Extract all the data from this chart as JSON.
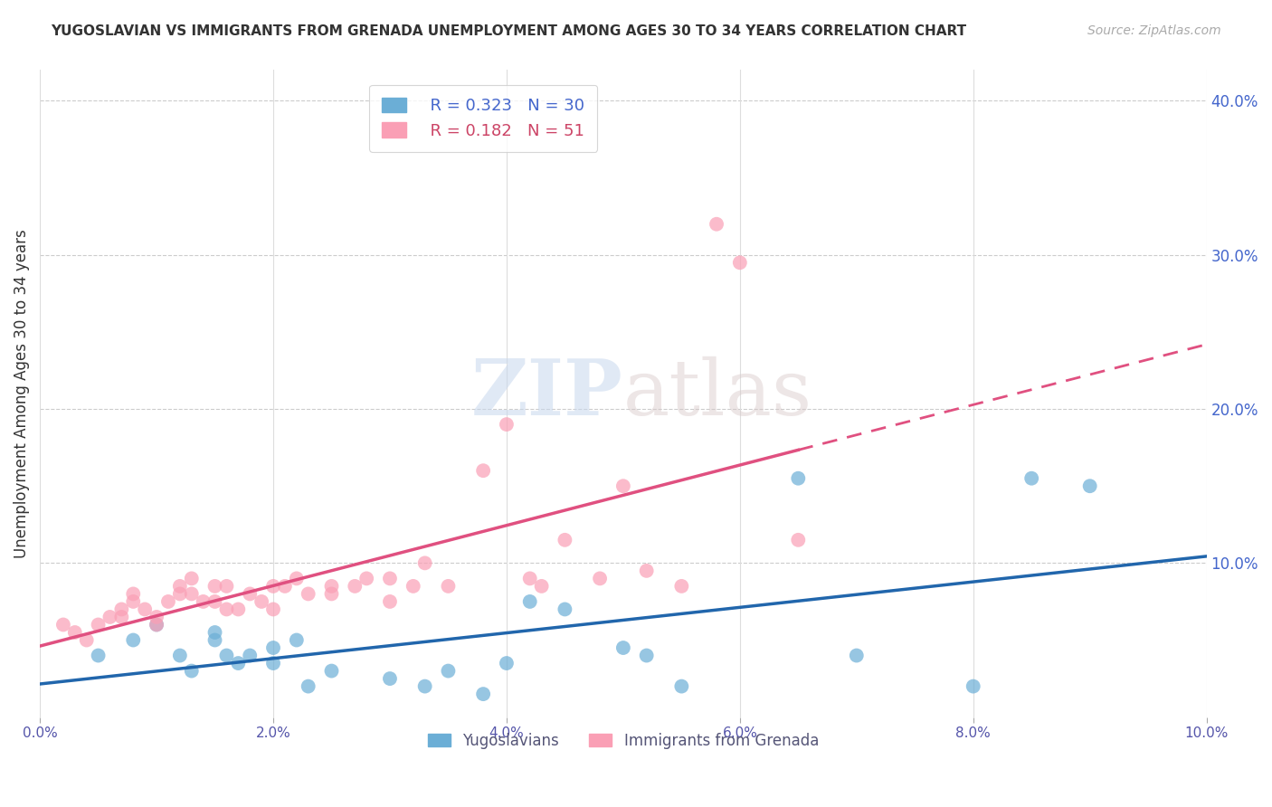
{
  "title": "YUGOSLAVIAN VS IMMIGRANTS FROM GRENADA UNEMPLOYMENT AMONG AGES 30 TO 34 YEARS CORRELATION CHART",
  "source": "Source: ZipAtlas.com",
  "ylabel_left": "Unemployment Among Ages 30 to 34 years",
  "x_tick_labels": [
    "0.0%",
    "2.0%",
    "4.0%",
    "6.0%",
    "8.0%",
    "10.0%"
  ],
  "x_tick_values": [
    0.0,
    0.02,
    0.04,
    0.06,
    0.08,
    0.1
  ],
  "y_tick_labels": [
    "10.0%",
    "20.0%",
    "30.0%",
    "40.0%"
  ],
  "y_tick_values": [
    0.1,
    0.2,
    0.3,
    0.4
  ],
  "xlim": [
    0.0,
    0.1
  ],
  "ylim": [
    0.0,
    0.42
  ],
  "blue_R": 0.323,
  "blue_N": 30,
  "pink_R": 0.182,
  "pink_N": 51,
  "blue_color": "#6baed6",
  "pink_color": "#fa9fb5",
  "blue_line_color": "#2166ac",
  "pink_line_color": "#e05080",
  "watermark_zip": "ZIP",
  "watermark_atlas": "atlas",
  "legend_labels": [
    "Yugoslavians",
    "Immigrants from Grenada"
  ],
  "blue_scatter_x": [
    0.005,
    0.008,
    0.01,
    0.012,
    0.013,
    0.015,
    0.015,
    0.016,
    0.017,
    0.018,
    0.02,
    0.02,
    0.022,
    0.023,
    0.025,
    0.03,
    0.033,
    0.035,
    0.038,
    0.04,
    0.042,
    0.045,
    0.05,
    0.052,
    0.055,
    0.065,
    0.07,
    0.08,
    0.085,
    0.09
  ],
  "blue_scatter_y": [
    0.04,
    0.05,
    0.06,
    0.04,
    0.03,
    0.055,
    0.05,
    0.04,
    0.035,
    0.04,
    0.045,
    0.035,
    0.05,
    0.02,
    0.03,
    0.025,
    0.02,
    0.03,
    0.015,
    0.035,
    0.075,
    0.07,
    0.045,
    0.04,
    0.02,
    0.155,
    0.04,
    0.02,
    0.155,
    0.15
  ],
  "pink_scatter_x": [
    0.002,
    0.003,
    0.004,
    0.005,
    0.006,
    0.007,
    0.007,
    0.008,
    0.008,
    0.009,
    0.01,
    0.01,
    0.011,
    0.012,
    0.012,
    0.013,
    0.013,
    0.014,
    0.015,
    0.015,
    0.016,
    0.016,
    0.017,
    0.018,
    0.019,
    0.02,
    0.02,
    0.021,
    0.022,
    0.023,
    0.025,
    0.025,
    0.027,
    0.028,
    0.03,
    0.03,
    0.032,
    0.033,
    0.035,
    0.038,
    0.04,
    0.042,
    0.043,
    0.045,
    0.048,
    0.05,
    0.052,
    0.055,
    0.058,
    0.06,
    0.065
  ],
  "pink_scatter_y": [
    0.06,
    0.055,
    0.05,
    0.06,
    0.065,
    0.065,
    0.07,
    0.075,
    0.08,
    0.07,
    0.06,
    0.065,
    0.075,
    0.08,
    0.085,
    0.08,
    0.09,
    0.075,
    0.085,
    0.075,
    0.085,
    0.07,
    0.07,
    0.08,
    0.075,
    0.085,
    0.07,
    0.085,
    0.09,
    0.08,
    0.08,
    0.085,
    0.085,
    0.09,
    0.09,
    0.075,
    0.085,
    0.1,
    0.085,
    0.16,
    0.19,
    0.09,
    0.085,
    0.115,
    0.09,
    0.15,
    0.095,
    0.085,
    0.32,
    0.295,
    0.115
  ]
}
